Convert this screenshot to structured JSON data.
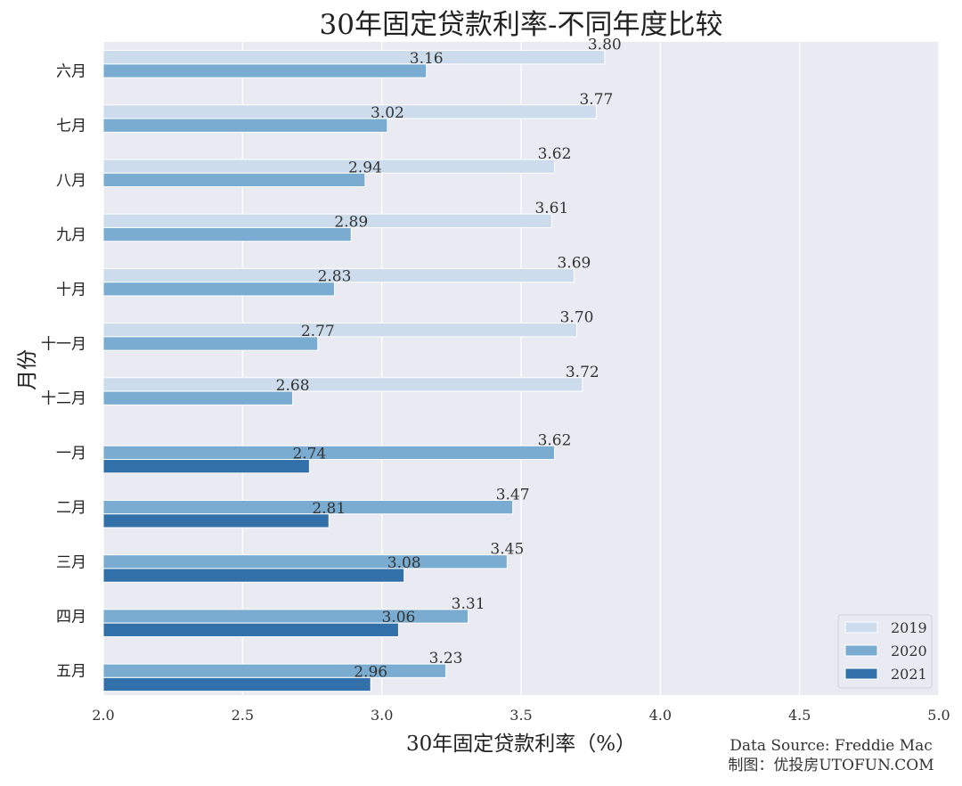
{
  "chart_data": {
    "type": "bar",
    "orientation": "horizontal",
    "title": "30年固定贷款利率-不同年度比较",
    "xlabel": "30年固定贷款利率（%）",
    "ylabel": "月份",
    "xlim": [
      2.0,
      5.0
    ],
    "xticks": [
      "2.0",
      "2.5",
      "3.0",
      "3.5",
      "4.0",
      "4.5",
      "5.0"
    ],
    "grid": true,
    "legend_position": "bottom-right",
    "categories": [
      "六月",
      "七月",
      "八月",
      "九月",
      "十月",
      "十一月",
      "十二月",
      "一月",
      "二月",
      "三月",
      "四月",
      "五月"
    ],
    "series": [
      {
        "name": "2019",
        "color": "#cddcec",
        "values": [
          3.8,
          3.77,
          3.62,
          3.61,
          3.69,
          3.7,
          3.72,
          null,
          null,
          null,
          null,
          null
        ]
      },
      {
        "name": "2020",
        "color": "#79acd0",
        "values": [
          3.16,
          3.02,
          2.94,
          2.89,
          2.83,
          2.77,
          2.68,
          3.62,
          3.47,
          3.45,
          3.31,
          3.23
        ]
      },
      {
        "name": "2021",
        "color": "#3170a9",
        "values": [
          null,
          null,
          null,
          null,
          null,
          null,
          null,
          2.74,
          2.81,
          3.08,
          3.06,
          2.96
        ]
      }
    ],
    "annotations": [
      "Data Source: Freddie Mac",
      "制图：优投房UTOFUN.COM"
    ]
  }
}
